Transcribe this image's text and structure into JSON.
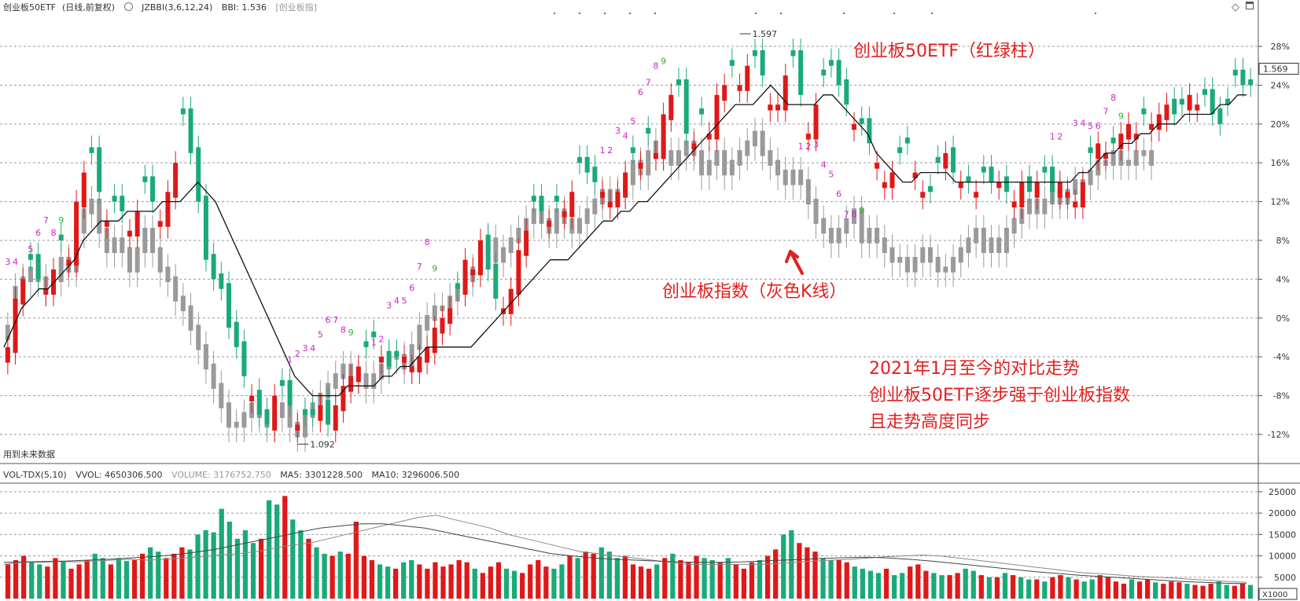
{
  "header": {
    "symbol": "创业板50ETF",
    "mode": "(日线,前复权)",
    "indicator_icon": "circle-icon",
    "indicator": "JZBBI(3,6,12,24)",
    "bbi_label": "BBI: 1.536",
    "overlay_tag": "[创业板指]",
    "diamond_icon": "diamond-icon"
  },
  "vol_header": {
    "name": "VOL-TDX(5,10)",
    "vvol": "VVOL: 4650306.500",
    "volume": "VOLUME: 3176752.750",
    "ma5": "MA5: 3301228.500",
    "ma10": "MA10: 3296006.500"
  },
  "future_data_note": "用到未来数据",
  "price_labels": {
    "high": "1.597",
    "low": "1.092",
    "current": "1.569"
  },
  "annotations": {
    "etf_label": "创业板50ETF（红绿柱）",
    "index_label": "创业板指数（灰色K线）",
    "summary_line1": "2021年1月至今的对比走势",
    "summary_line2": "创业板50ETF逐步强于创业板指数",
    "summary_line3": "且走势高度同步"
  },
  "colors": {
    "up": "#e01818",
    "down": "#1aaa78",
    "index_candle": "#9a9a9a",
    "ma_line": "#111111",
    "accent": "#e02020",
    "seq_magenta": "#d020d0",
    "seq_green": "#30b030"
  },
  "chart_data": [
    {
      "type": "candlestick",
      "title": "创业板50ETF (日线,前复权)",
      "y_axis_ticks": [
        "28%",
        "24%",
        "20%",
        "16%",
        "12%",
        "8%",
        "4%",
        "0%",
        "-4%",
        "-8%",
        "-12%"
      ],
      "y_tick_values": [
        28,
        24,
        20,
        16,
        12,
        8,
        4,
        0,
        -4,
        -8,
        -12
      ],
      "ylim": [
        -15,
        31
      ],
      "grid": true,
      "series": [
        {
          "name": "创业板50ETF",
          "style": "red/green candles"
        },
        {
          "name": "创业板指",
          "style": "gray candles"
        },
        {
          "name": "BBI",
          "style": "black line"
        }
      ],
      "etf_close_pct": [
        -3,
        2,
        4,
        6,
        4,
        3,
        5,
        8,
        6,
        12,
        15,
        17,
        13,
        10,
        12,
        11,
        9,
        11,
        14,
        12,
        10,
        13,
        16,
        21,
        17,
        12,
        6,
        4,
        3,
        -1,
        -3,
        -6,
        -8,
        -10,
        -11,
        -8,
        -7,
        -9,
        -11,
        -10,
        -10,
        -9,
        -11,
        -9,
        -7,
        -6,
        -5,
        -3,
        -2,
        -4,
        -5,
        -4,
        -4,
        -5,
        -4,
        -3,
        -1,
        0,
        1,
        3,
        6,
        5,
        8,
        5,
        2,
        1,
        3,
        7,
        9,
        12,
        11,
        10,
        12,
        11,
        13,
        16,
        15,
        14,
        13,
        12,
        13,
        15,
        17,
        16,
        19,
        17,
        21,
        23,
        24,
        19,
        18,
        21,
        19,
        23,
        24,
        26,
        24,
        26,
        27,
        25,
        22,
        22,
        25,
        27,
        23,
        19,
        22,
        25,
        26,
        24,
        22,
        20,
        20,
        18,
        16,
        14,
        15,
        17,
        18,
        15,
        13,
        13,
        16,
        17,
        15,
        14,
        14,
        13,
        15,
        14,
        14,
        13,
        12,
        14,
        13,
        14,
        15,
        13,
        14,
        13,
        12,
        14,
        17,
        18,
        17,
        18,
        19,
        20,
        19,
        21,
        20,
        21,
        22,
        21,
        22,
        23,
        22,
        23,
        21,
        20,
        22,
        25,
        24,
        24
      ],
      "index_close_pct": [
        -1,
        3,
        4,
        5,
        4,
        3,
        4,
        6,
        5,
        9,
        11,
        12,
        9,
        7,
        8,
        7,
        5,
        7,
        9,
        7,
        5,
        4,
        2,
        1,
        -1,
        -3,
        -5,
        -7,
        -9,
        -11,
        -11,
        -10,
        -9,
        -10,
        -11,
        -10,
        -9,
        -11,
        -12,
        -10,
        -9,
        -8,
        -7,
        -6,
        -5,
        -6,
        -6,
        -7,
        -6,
        -5,
        -4,
        -4,
        -5,
        -3,
        -1,
        0,
        1,
        1,
        2,
        3,
        4,
        5,
        7,
        8,
        6,
        7,
        8,
        9,
        10,
        11,
        10,
        9,
        11,
        10,
        9,
        10,
        11,
        12,
        13,
        12,
        13,
        14,
        16,
        15,
        17,
        18,
        17,
        16,
        17,
        18,
        17,
        15,
        16,
        17,
        15,
        16,
        17,
        18,
        19,
        17,
        16,
        15,
        14,
        15,
        14,
        12,
        10,
        9,
        8,
        9,
        10,
        11,
        8,
        9,
        8,
        7,
        6,
        6,
        5,
        6,
        7,
        6,
        5,
        5,
        6,
        7,
        8,
        9,
        7,
        8,
        7,
        9,
        10,
        11,
        12,
        11,
        12,
        13,
        12,
        13,
        14,
        14,
        15,
        16,
        16,
        17,
        16,
        16,
        17,
        17,
        16
      ],
      "bbi_pct": [
        -3,
        -1,
        1,
        2,
        3,
        3,
        4,
        5,
        6,
        8,
        9,
        10,
        10,
        10,
        11,
        11,
        11,
        11,
        12,
        12,
        12,
        13,
        14,
        13,
        12,
        10,
        8,
        6,
        4,
        2,
        0,
        -2,
        -4,
        -6,
        -7,
        -8,
        -8,
        -8,
        -8,
        -7,
        -7,
        -7,
        -7,
        -6,
        -6,
        -5,
        -5,
        -4,
        -3,
        -3,
        -3,
        -3,
        -3,
        -3,
        -2,
        -1,
        0,
        1,
        2,
        3,
        4,
        5,
        6,
        6,
        6,
        7,
        8,
        9,
        10,
        10,
        11,
        11,
        12,
        12,
        13,
        14,
        15,
        16,
        17,
        18,
        19,
        20,
        21,
        22,
        22,
        22,
        23,
        24,
        23,
        22,
        22,
        22,
        22,
        23,
        23,
        22,
        21,
        20,
        19,
        17,
        16,
        15,
        14,
        14,
        15,
        15,
        15,
        15,
        14,
        14,
        14,
        14,
        14,
        14,
        14,
        14,
        14,
        14,
        14,
        14,
        14,
        14,
        15,
        15,
        16,
        17,
        17,
        18,
        18,
        19,
        19,
        20,
        20,
        20,
        21,
        21,
        21,
        21,
        22,
        22,
        23,
        23
      ],
      "up_down": [
        1,
        1,
        1,
        0,
        0,
        1,
        1,
        0,
        1,
        1,
        1,
        0,
        0,
        1,
        0,
        0,
        1,
        1,
        0,
        0,
        1,
        1,
        1,
        0,
        0,
        0,
        0,
        0,
        0,
        0,
        0,
        0,
        1,
        0,
        0,
        1,
        0,
        0,
        1,
        0,
        0,
        1,
        0,
        1,
        1,
        1,
        1,
        0,
        0,
        1,
        0,
        0,
        1,
        1,
        1,
        1,
        1,
        1,
        1,
        0,
        1,
        1,
        1,
        0,
        0,
        1,
        1,
        1,
        1,
        0,
        0,
        1,
        0,
        1,
        1,
        0,
        0,
        0,
        1,
        1,
        1,
        1,
        0,
        1,
        0,
        1,
        1,
        1,
        0,
        0,
        1,
        0,
        1,
        1,
        1,
        0,
        1,
        1,
        0,
        0,
        1,
        1,
        1,
        0,
        0,
        1,
        1,
        0,
        0,
        0,
        0,
        1,
        0,
        0,
        1,
        1,
        1,
        0,
        0,
        1,
        1,
        0,
        0,
        1,
        0,
        1,
        0,
        1,
        0,
        0,
        1,
        0,
        1,
        1,
        0,
        1,
        0,
        0,
        1,
        1,
        1,
        1,
        0,
        1,
        1,
        0,
        1,
        1,
        1,
        0,
        1,
        1,
        1,
        0,
        0,
        1,
        1,
        0
      ],
      "sequence_labels": [
        {
          "text": "3",
          "i": 0,
          "y": 5.5
        },
        {
          "text": "4",
          "i": 1,
          "y": 5.5
        },
        {
          "text": "5",
          "i": 3,
          "y": 6.8
        },
        {
          "text": "6",
          "i": 4,
          "y": 8.5
        },
        {
          "text": "7",
          "i": 5,
          "y": 9.8
        },
        {
          "text": "8",
          "i": 6,
          "y": 8.5
        },
        {
          "text": "9",
          "i": 7,
          "y": 9.8
        },
        {
          "text": "1",
          "i": 37,
          "y": -4.6
        },
        {
          "text": "2",
          "i": 38,
          "y": -4
        },
        {
          "text": "3",
          "i": 39,
          "y": -3.4
        },
        {
          "text": "4",
          "i": 40,
          "y": -3.4
        },
        {
          "text": "5",
          "i": 41,
          "y": -2
        },
        {
          "text": "6",
          "i": 42,
          "y": -0.5
        },
        {
          "text": "7",
          "i": 43,
          "y": -0.5
        },
        {
          "text": "8",
          "i": 44,
          "y": -1.5
        },
        {
          "text": "9",
          "i": 45,
          "y": -1.8
        },
        {
          "text": "1",
          "i": 48,
          "y": -2.8
        },
        {
          "text": "2",
          "i": 49,
          "y": -2.5
        },
        {
          "text": "3",
          "i": 50,
          "y": 1
        },
        {
          "text": "4",
          "i": 51,
          "y": 1.5
        },
        {
          "text": "5",
          "i": 52,
          "y": 1.5
        },
        {
          "text": "6",
          "i": 53,
          "y": 2.8
        },
        {
          "text": "7",
          "i": 54,
          "y": 5
        },
        {
          "text": "8",
          "i": 55,
          "y": 7.5
        },
        {
          "text": "9",
          "i": 56,
          "y": 4.8
        },
        {
          "text": "1",
          "i": 78,
          "y": 17
        },
        {
          "text": "2",
          "i": 79,
          "y": 17
        },
        {
          "text": "3",
          "i": 80,
          "y": 19
        },
        {
          "text": "4",
          "i": 81,
          "y": 18.5
        },
        {
          "text": "5",
          "i": 82,
          "y": 20
        },
        {
          "text": "6",
          "i": 83,
          "y": 23
        },
        {
          "text": "7",
          "i": 84,
          "y": 24
        },
        {
          "text": "8",
          "i": 85,
          "y": 25.7
        },
        {
          "text": "9",
          "i": 86,
          "y": 26.2
        },
        {
          "text": "1",
          "i": 104,
          "y": 17.4
        },
        {
          "text": "2",
          "i": 105,
          "y": 17.4
        },
        {
          "text": "3",
          "i": 106,
          "y": 17.6
        },
        {
          "text": "4",
          "i": 107,
          "y": 15.5
        },
        {
          "text": "5",
          "i": 108,
          "y": 14.5
        },
        {
          "text": "6",
          "i": 109,
          "y": 12.5
        },
        {
          "text": "7",
          "i": 110,
          "y": 10.4
        },
        {
          "text": "8",
          "i": 111,
          "y": 10.4
        },
        {
          "text": "9",
          "i": 112,
          "y": 10.8
        },
        {
          "text": "1",
          "i": 137,
          "y": 18.4
        },
        {
          "text": "2",
          "i": 138,
          "y": 18.4
        },
        {
          "text": "3",
          "i": 140,
          "y": 19.8
        },
        {
          "text": "4",
          "i": 141,
          "y": 19.8
        },
        {
          "text": "5",
          "i": 142,
          "y": 19.5
        },
        {
          "text": "6",
          "i": 143,
          "y": 19.5
        },
        {
          "text": "7",
          "i": 144,
          "y": 21
        },
        {
          "text": "8",
          "i": 145,
          "y": 22.4
        },
        {
          "text": "9",
          "i": 146,
          "y": 20.5
        }
      ]
    },
    {
      "type": "bar",
      "title": "VOL-TDX(5,10)",
      "y_axis_ticks": [
        "25000",
        "20000",
        "15000",
        "10000",
        "5000"
      ],
      "y_tick_values": [
        25000,
        20000,
        15000,
        10000,
        5000
      ],
      "ylim": [
        0,
        27000
      ],
      "unit_label": "X1000",
      "grid": true,
      "values": [
        8000,
        9000,
        10000,
        8500,
        8000,
        7500,
        9500,
        8800,
        7000,
        8000,
        9000,
        10500,
        9500,
        8000,
        9500,
        8800,
        9000,
        10500,
        12000,
        11000,
        9500,
        10500,
        12000,
        11500,
        15000,
        16000,
        15500,
        21000,
        18000,
        14000,
        16000,
        13000,
        14000,
        23000,
        22000,
        24000,
        18500,
        16000,
        14000,
        12000,
        10500,
        10000,
        11000,
        10500,
        18000,
        10000,
        9000,
        8000,
        7500,
        7000,
        8500,
        9000,
        8000,
        7000,
        8500,
        7500,
        8000,
        9000,
        8500,
        7000,
        6000,
        7500,
        8500,
        7000,
        6500,
        6000,
        8000,
        9000,
        7500,
        7000,
        8000,
        10000,
        9500,
        11000,
        10500,
        12000,
        11000,
        9500,
        10000,
        8000,
        7500,
        7000,
        8000,
        9500,
        10500,
        9000,
        8500,
        10000,
        9500,
        9000,
        8500,
        9500,
        8000,
        7000,
        8500,
        9000,
        10000,
        11500,
        15000,
        16000,
        13000,
        12000,
        11000,
        9500,
        9000,
        9000,
        8500,
        7500,
        7000,
        6500,
        6000,
        7000,
        5500,
        6000,
        7500,
        8000,
        6500,
        6000,
        5500,
        5500,
        6000,
        7000,
        6500,
        5500,
        5000,
        5000,
        6000,
        5500,
        5000,
        4500,
        4500,
        4000,
        5000,
        5500,
        5000,
        4500,
        4000,
        4500,
        5500,
        5000,
        4000,
        3500,
        4500,
        4000,
        4500,
        3800,
        3500,
        4000,
        3800,
        3500,
        3200,
        3000,
        3500,
        4000,
        3200,
        3000,
        3500,
        3200
      ],
      "ma5_curve": [
        8000,
        8500,
        8500,
        8700,
        8600,
        8800,
        9000,
        9200,
        9000,
        9200,
        9500,
        9800,
        10200,
        10500,
        11000,
        11800,
        12500,
        13000,
        14000,
        15000,
        16000,
        17000,
        18000,
        19000,
        19500,
        18500,
        17500,
        16500,
        15000,
        14000,
        13000,
        12000,
        11000,
        10500,
        10000,
        9500,
        9000,
        8500,
        8000,
        8000,
        8000,
        8000,
        8000,
        8200,
        8500,
        8800,
        9000,
        9200,
        9500,
        9800,
        10000,
        10200,
        10000,
        9500,
        9000,
        8500,
        8000,
        7500,
        7000,
        6500,
        6000,
        5800,
        5500,
        5200,
        5000,
        4800,
        4500,
        4300,
        4000,
        3800
      ],
      "ma10_curve": [
        8500,
        8600,
        8700,
        8800,
        9000,
        9200,
        9500,
        9800,
        10200,
        10800,
        11500,
        12500,
        13500,
        14500,
        15500,
        16500,
        17000,
        17500,
        17500,
        17000,
        16500,
        15500,
        14500,
        13500,
        12500,
        11500,
        10500,
        10000,
        9500,
        9200,
        9000,
        8800,
        8600,
        8500,
        8500,
        8600,
        8800,
        9000,
        9200,
        9400,
        9600,
        9700,
        9500,
        9200,
        8800,
        8300,
        7800,
        7300,
        6800,
        6300,
        5900,
        5500,
        5200,
        4900,
        4600,
        4300,
        4000,
        3800,
        3600,
        3500
      ]
    }
  ]
}
